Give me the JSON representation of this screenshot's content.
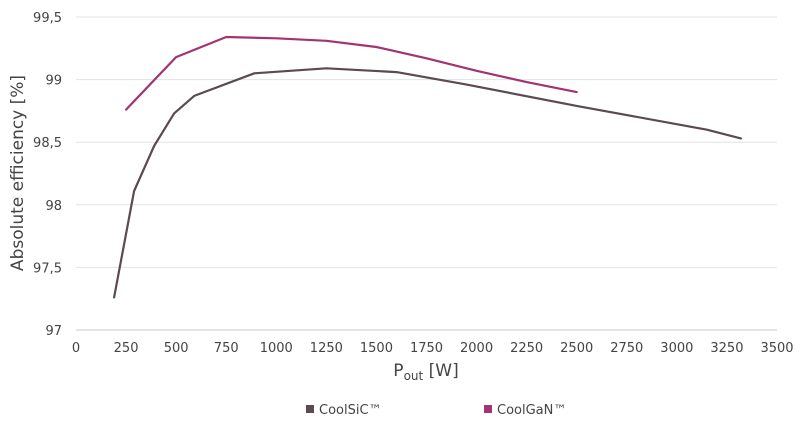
{
  "chart_data": {
    "type": "line",
    "title": "",
    "xlabel_main": "P",
    "xlabel_sub": "out",
    "xlabel_unit": " [W]",
    "ylabel": "Absolute efficiency [%]",
    "xlim": [
      0,
      3500
    ],
    "ylim": [
      97,
      99.5
    ],
    "x_ticks": [
      0,
      250,
      500,
      750,
      1000,
      1250,
      1500,
      1750,
      2000,
      2250,
      2500,
      2750,
      3000,
      3250,
      3500
    ],
    "x_tick_labels": [
      "0",
      "250",
      "500",
      "750",
      "1000",
      "1250",
      "1500",
      "1750",
      "2000",
      "2250",
      "2500",
      "2750",
      "3000",
      "3250",
      "3500"
    ],
    "y_ticks": [
      97,
      97.5,
      98,
      98.5,
      99,
      99.5
    ],
    "y_tick_labels": [
      "97",
      "97,5",
      "98",
      "98,5",
      "99",
      "99,5"
    ],
    "grid": "horizontal",
    "legend_position": "bottom",
    "series": [
      {
        "name": "CoolSiC™",
        "color": "#5b4a50",
        "x": [
          190,
          290,
          390,
          490,
          590,
          890,
          1250,
          1600,
          1950,
          2500,
          3150,
          3320
        ],
        "y": [
          97.26,
          98.11,
          98.47,
          98.73,
          98.87,
          99.05,
          99.09,
          99.06,
          98.96,
          98.79,
          98.6,
          98.53
        ]
      },
      {
        "name": "CoolGaN™",
        "color": "#a23472",
        "x": [
          250,
          500,
          750,
          1000,
          1250,
          1500,
          1750,
          2000,
          2250,
          2500
        ],
        "y": [
          98.76,
          99.18,
          99.34,
          99.33,
          99.31,
          99.26,
          99.17,
          99.07,
          98.98,
          98.9
        ]
      }
    ]
  }
}
